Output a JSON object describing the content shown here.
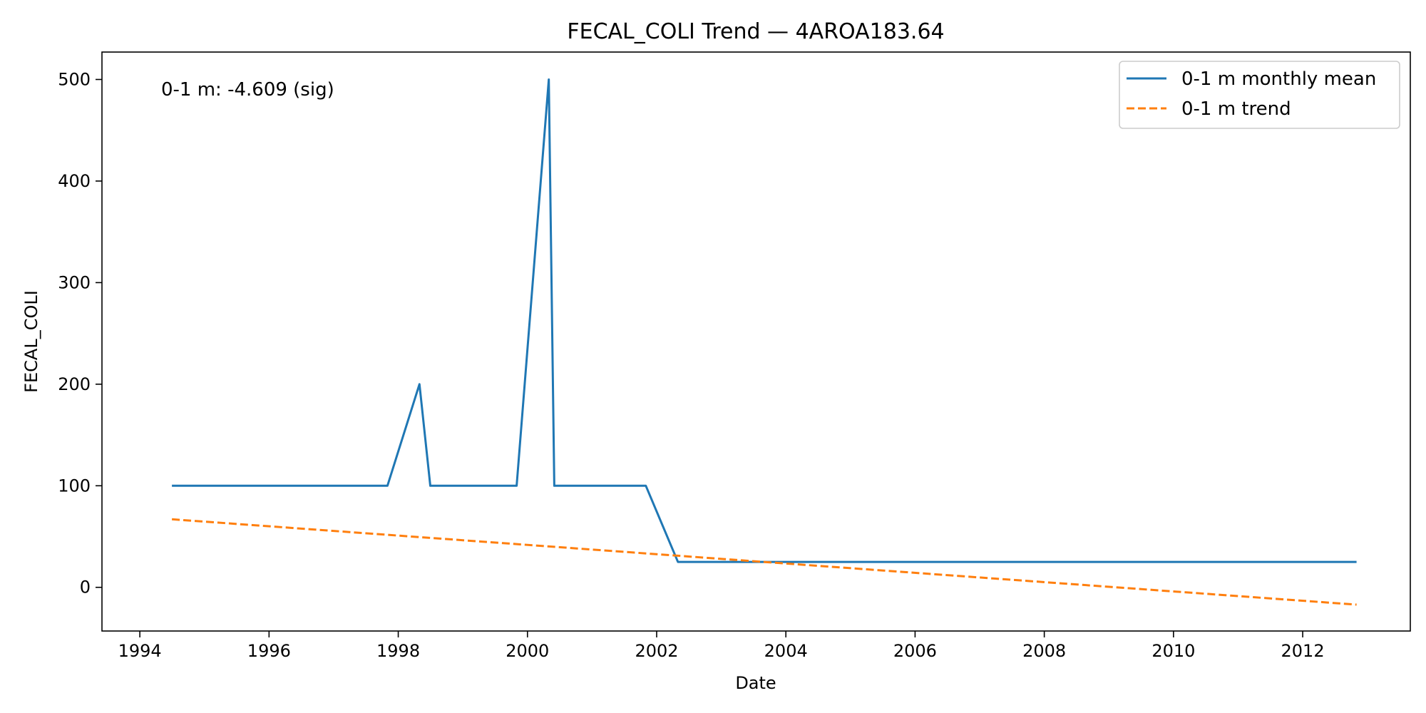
{
  "chart_data": {
    "type": "line",
    "title": "FECAL_COLI Trend — 4AROA183.64",
    "xlabel": "Date",
    "ylabel": "FECAL_COLI",
    "xlim": [
      "1993-06-01",
      "2013-09-01"
    ],
    "ylim": [
      -43,
      527
    ],
    "x_ticks": [
      "1994",
      "1996",
      "1998",
      "2000",
      "2002",
      "2004",
      "2006",
      "2008",
      "2010",
      "2012"
    ],
    "y_ticks": [
      0,
      100,
      200,
      300,
      400,
      500
    ],
    "grid": false,
    "legend_position": "top-right",
    "annotation": "0-1 m: -4.609 (sig)",
    "series": [
      {
        "name": "0-1 m monthly mean",
        "color": "#1f77b4",
        "style": "solid",
        "points": [
          {
            "x": "1994-07-01",
            "y": 100
          },
          {
            "x": "1997-11-01",
            "y": 100
          },
          {
            "x": "1998-05-01",
            "y": 200
          },
          {
            "x": "1998-07-01",
            "y": 100
          },
          {
            "x": "1999-11-01",
            "y": 100
          },
          {
            "x": "2000-05-01",
            "y": 500
          },
          {
            "x": "2000-06-01",
            "y": 100
          },
          {
            "x": "2001-11-01",
            "y": 100
          },
          {
            "x": "2002-05-01",
            "y": 25
          },
          {
            "x": "2012-11-01",
            "y": 25
          }
        ]
      },
      {
        "name": "0-1 m trend",
        "color": "#ff7f0e",
        "style": "dashed",
        "points": [
          {
            "x": "1994-07-01",
            "y": 67
          },
          {
            "x": "2012-11-01",
            "y": -17
          }
        ]
      }
    ]
  }
}
